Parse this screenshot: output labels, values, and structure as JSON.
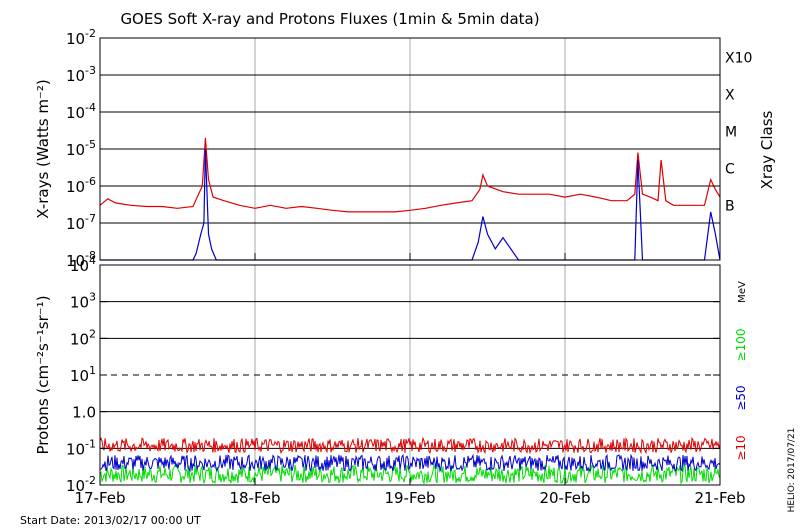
{
  "figure": {
    "title": "GOES Soft X-ray and Protons Fluxes   (1min & 5min data)",
    "start_date": "Start Date: 2013/02/17 00:00 UT",
    "credit": "HELIO: 2017/07/21"
  },
  "chart_data": [
    {
      "type": "line",
      "panel": "xray",
      "ylabel": "X-rays (Watts m⁻²)",
      "y_scale": "log",
      "ylim": [
        1e-08,
        0.01
      ],
      "y_ticks": [
        {
          "base": "10",
          "exp": "-8"
        },
        {
          "base": "10",
          "exp": "-7"
        },
        {
          "base": "10",
          "exp": "-6"
        },
        {
          "base": "10",
          "exp": "-5"
        },
        {
          "base": "10",
          "exp": "-4"
        },
        {
          "base": "10",
          "exp": "-3"
        },
        {
          "base": "10",
          "exp": "-2"
        }
      ],
      "right_axis_label": "Xray Class",
      "class_labels": [
        {
          "label": "B",
          "value": 1e-07
        },
        {
          "label": "C",
          "value": 1e-06
        },
        {
          "label": "M",
          "value": 1e-05
        },
        {
          "label": "X",
          "value": 0.0001
        },
        {
          "label": "X10",
          "value": 0.001
        }
      ],
      "x_ticks": [
        "17-Feb",
        "18-Feb",
        "19-Feb",
        "20-Feb",
        "21-Feb"
      ],
      "xlim_days": [
        0,
        4
      ],
      "grid": true,
      "series": [
        {
          "color": "#e00000",
          "points": [
            [
              0,
              3e-07
            ],
            [
              0.05,
              4.5e-07
            ],
            [
              0.1,
              3.5e-07
            ],
            [
              0.2,
              3e-07
            ],
            [
              0.3,
              2.8e-07
            ],
            [
              0.4,
              2.8e-07
            ],
            [
              0.5,
              2.5e-07
            ],
            [
              0.6,
              2.8e-07
            ],
            [
              0.66,
              1e-06
            ],
            [
              0.68,
              2e-05
            ],
            [
              0.7,
              1.5e-06
            ],
            [
              0.73,
              5e-07
            ],
            [
              0.8,
              4e-07
            ],
            [
              0.9,
              3e-07
            ],
            [
              1.0,
              2.5e-07
            ],
            [
              1.1,
              3e-07
            ],
            [
              1.2,
              2.5e-07
            ],
            [
              1.3,
              2.8e-07
            ],
            [
              1.4,
              2.5e-07
            ],
            [
              1.5,
              2.2e-07
            ],
            [
              1.6,
              2e-07
            ],
            [
              1.7,
              2e-07
            ],
            [
              1.8,
              2e-07
            ],
            [
              1.9,
              2e-07
            ],
            [
              2.0,
              2.2e-07
            ],
            [
              2.1,
              2.5e-07
            ],
            [
              2.2,
              3e-07
            ],
            [
              2.3,
              3.5e-07
            ],
            [
              2.4,
              4e-07
            ],
            [
              2.45,
              8e-07
            ],
            [
              2.47,
              2e-06
            ],
            [
              2.5,
              1e-06
            ],
            [
              2.6,
              7e-07
            ],
            [
              2.7,
              6e-07
            ],
            [
              2.8,
              6e-07
            ],
            [
              2.9,
              6e-07
            ],
            [
              3.0,
              5e-07
            ],
            [
              3.1,
              6e-07
            ],
            [
              3.2,
              5e-07
            ],
            [
              3.3,
              4e-07
            ],
            [
              3.4,
              4e-07
            ],
            [
              3.45,
              6e-07
            ],
            [
              3.47,
              8e-06
            ],
            [
              3.5,
              6e-07
            ],
            [
              3.55,
              5e-07
            ],
            [
              3.6,
              4e-07
            ],
            [
              3.62,
              5e-06
            ],
            [
              3.65,
              4e-07
            ],
            [
              3.7,
              3e-07
            ],
            [
              3.8,
              3e-07
            ],
            [
              3.9,
              3e-07
            ],
            [
              3.94,
              1.5e-06
            ],
            [
              3.97,
              8e-07
            ],
            [
              4.0,
              5e-07
            ]
          ]
        },
        {
          "color": "#0000cc",
          "points": [
            [
              0,
              1e-08
            ],
            [
              0.6,
              1e-08
            ],
            [
              0.62,
              1.5e-08
            ],
            [
              0.65,
              5e-08
            ],
            [
              0.67,
              1e-07
            ],
            [
              0.68,
              1e-05
            ],
            [
              0.7,
              5e-08
            ],
            [
              0.72,
              2e-08
            ],
            [
              0.75,
              1e-08
            ],
            [
              2.4,
              1e-08
            ],
            [
              2.44,
              3e-08
            ],
            [
              2.47,
              1.5e-07
            ],
            [
              2.5,
              5e-08
            ],
            [
              2.55,
              2e-08
            ],
            [
              2.6,
              4e-08
            ],
            [
              2.65,
              2e-08
            ],
            [
              2.7,
              1e-08
            ],
            [
              3.45,
              1e-08
            ],
            [
              3.47,
              5e-06
            ],
            [
              3.5,
              1e-08
            ],
            [
              3.9,
              1e-08
            ],
            [
              3.94,
              2e-07
            ],
            [
              3.97,
              5e-08
            ],
            [
              4.0,
              1e-08
            ]
          ]
        }
      ]
    },
    {
      "type": "line",
      "panel": "protons",
      "ylabel": "Protons (cm⁻²s⁻¹sr⁻¹)",
      "y_scale": "log",
      "ylim": [
        0.01,
        10000
      ],
      "y_ticks": [
        {
          "base": "10",
          "exp": "-2"
        },
        {
          "base": "10",
          "exp": "-1"
        },
        {
          "base": "1.0",
          "exp": ""
        },
        {
          "base": "10",
          "exp": "1"
        },
        {
          "base": "10",
          "exp": "2"
        },
        {
          "base": "10",
          "exp": "3"
        },
        {
          "base": "10",
          "exp": "4"
        }
      ],
      "unit_label": "MeV",
      "threshold_line": 10,
      "x_ticks": [
        "17-Feb",
        "18-Feb",
        "19-Feb",
        "20-Feb",
        "21-Feb"
      ],
      "xlim_days": [
        0,
        4
      ],
      "grid": true,
      "series": [
        {
          "name": "≥100",
          "color": "#00dd00",
          "level": 0.02,
          "jitter": 0.25
        },
        {
          "name": "≥50",
          "color": "#0000cc",
          "level": 0.04,
          "jitter": 0.22
        },
        {
          "name": "≥10",
          "color": "#e00000",
          "level": 0.12,
          "jitter": 0.2
        }
      ]
    }
  ]
}
